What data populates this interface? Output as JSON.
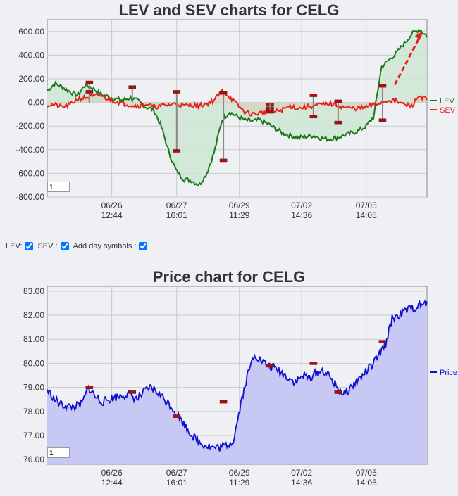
{
  "top": {
    "title": "LEV and SEV charts for CELG",
    "zoom_value": "1"
  },
  "bottom": {
    "title": "Price chart for CELG",
    "zoom_value": "1"
  },
  "controls": {
    "lev_label": "LEV:",
    "sev_label": "SEV :",
    "day_symbols_label": "Add day symbols :"
  },
  "colors": {
    "lev": "#1a7a1a",
    "lev_fill": "#cfe6d3",
    "sev": "#e8201a",
    "sev_fill": "#d9c8b4",
    "price": "#1010d0",
    "price_fill": "#c8c8f4",
    "grid": "#c9c9c9",
    "marker": "#cc0000"
  },
  "chart_data": [
    {
      "type": "line",
      "title": "LEV and SEV charts for CELG",
      "x_tick_labels": [
        {
          "date": "06/26",
          "time": "12:44"
        },
        {
          "date": "06/27",
          "time": "16:01"
        },
        {
          "date": "06/29",
          "time": "11:29"
        },
        {
          "date": "07/02",
          "time": "14:36"
        },
        {
          "date": "07/05",
          "time": "14:05"
        }
      ],
      "y_tick_labels": [
        "600.00",
        "400.00",
        "200.00",
        "0.00",
        "-200.00",
        "-400.00",
        "-600.00",
        "-800.00"
      ],
      "ylim": [
        -800,
        700
      ],
      "grid": true,
      "legend_position": "right",
      "series": [
        {
          "name": "LEV",
          "values": [
            100,
            160,
            130,
            90,
            60,
            150,
            120,
            70,
            50,
            30,
            20,
            40,
            10,
            -40,
            -60,
            -200,
            -420,
            -580,
            -650,
            -660,
            -700,
            -600,
            -420,
            -150,
            -80,
            -120,
            -150,
            -160,
            -150,
            -180,
            -220,
            -260,
            -280,
            -300,
            -290,
            -280,
            -300,
            -310,
            -300,
            -280,
            -260,
            -240,
            -200,
            -120,
            300,
            360,
            420,
            500,
            580,
            620,
            560
          ]
        },
        {
          "name": "SEV",
          "values": [
            -20,
            -20,
            -40,
            -20,
            30,
            40,
            50,
            60,
            30,
            10,
            -10,
            -20,
            -30,
            -10,
            -40,
            -30,
            -20,
            -10,
            -30,
            -20,
            -30,
            -10,
            20,
            100,
            50,
            -20,
            -80,
            -100,
            -90,
            -70,
            -80,
            -60,
            -30,
            -50,
            -40,
            -30,
            -20,
            -10,
            -20,
            -40,
            -50,
            -50,
            -40,
            -20,
            0,
            20,
            10,
            -20,
            -30,
            60,
            20
          ]
        }
      ],
      "day_markers": [
        {
          "x": 0.111,
          "value": 170
        },
        {
          "x": 0.111,
          "value": 90
        },
        {
          "x": 0.224,
          "value": 130
        },
        {
          "x": 0.341,
          "value": 90
        },
        {
          "x": 0.341,
          "value": -410
        },
        {
          "x": 0.464,
          "value": 80
        },
        {
          "x": 0.464,
          "value": -490
        },
        {
          "x": 0.587,
          "value": -20
        },
        {
          "x": 0.587,
          "value": -50
        },
        {
          "x": 0.587,
          "value": -80
        },
        {
          "x": 0.701,
          "value": 60
        },
        {
          "x": 0.701,
          "value": -120
        },
        {
          "x": 0.766,
          "value": 10
        },
        {
          "x": 0.766,
          "value": -170
        },
        {
          "x": 0.883,
          "value": 140
        },
        {
          "x": 0.883,
          "value": -150
        }
      ],
      "annotations": [
        "dashed trend arrow at end of LEV series"
      ]
    },
    {
      "type": "area",
      "title": "Price chart for CELG",
      "x_tick_labels": [
        {
          "date": "06/26",
          "time": "12:44"
        },
        {
          "date": "06/27",
          "time": "16:01"
        },
        {
          "date": "06/29",
          "time": "11:29"
        },
        {
          "date": "07/02",
          "time": "14:36"
        },
        {
          "date": "07/05",
          "time": "14:05"
        }
      ],
      "y_tick_labels": [
        "83.00",
        "82.00",
        "81.00",
        "80.00",
        "79.00",
        "78.00",
        "77.00",
        "76.00"
      ],
      "ylim": [
        75.8,
        83.2
      ],
      "grid": true,
      "legend_position": "right",
      "series": [
        {
          "name": "Price",
          "values": [
            78.9,
            78.5,
            78.3,
            78.2,
            78.2,
            78.3,
            79.0,
            78.6,
            78.4,
            78.5,
            78.6,
            78.7,
            78.7,
            78.5,
            78.8,
            79.0,
            78.8,
            78.5,
            78.2,
            77.8,
            77.4,
            77.0,
            76.7,
            76.6,
            76.5,
            76.5,
            76.6,
            76.8,
            78.3,
            79.5,
            80.4,
            80.1,
            79.9,
            79.8,
            79.6,
            79.4,
            79.2,
            79.5,
            79.4,
            79.6,
            79.7,
            79.4,
            79.0,
            78.7,
            79.0,
            79.3,
            79.6,
            79.9,
            80.3,
            80.8,
            81.9,
            82.0,
            82.2,
            82.3,
            82.4,
            82.5
          ]
        }
      ],
      "day_markers": [
        {
          "x": 0.111,
          "value": 79.0
        },
        {
          "x": 0.224,
          "value": 78.8
        },
        {
          "x": 0.341,
          "value": 77.8
        },
        {
          "x": 0.464,
          "value": 78.4
        },
        {
          "x": 0.587,
          "value": 79.9
        },
        {
          "x": 0.701,
          "value": 80.0
        },
        {
          "x": 0.766,
          "value": 78.8
        },
        {
          "x": 0.883,
          "value": 80.9
        }
      ]
    }
  ]
}
